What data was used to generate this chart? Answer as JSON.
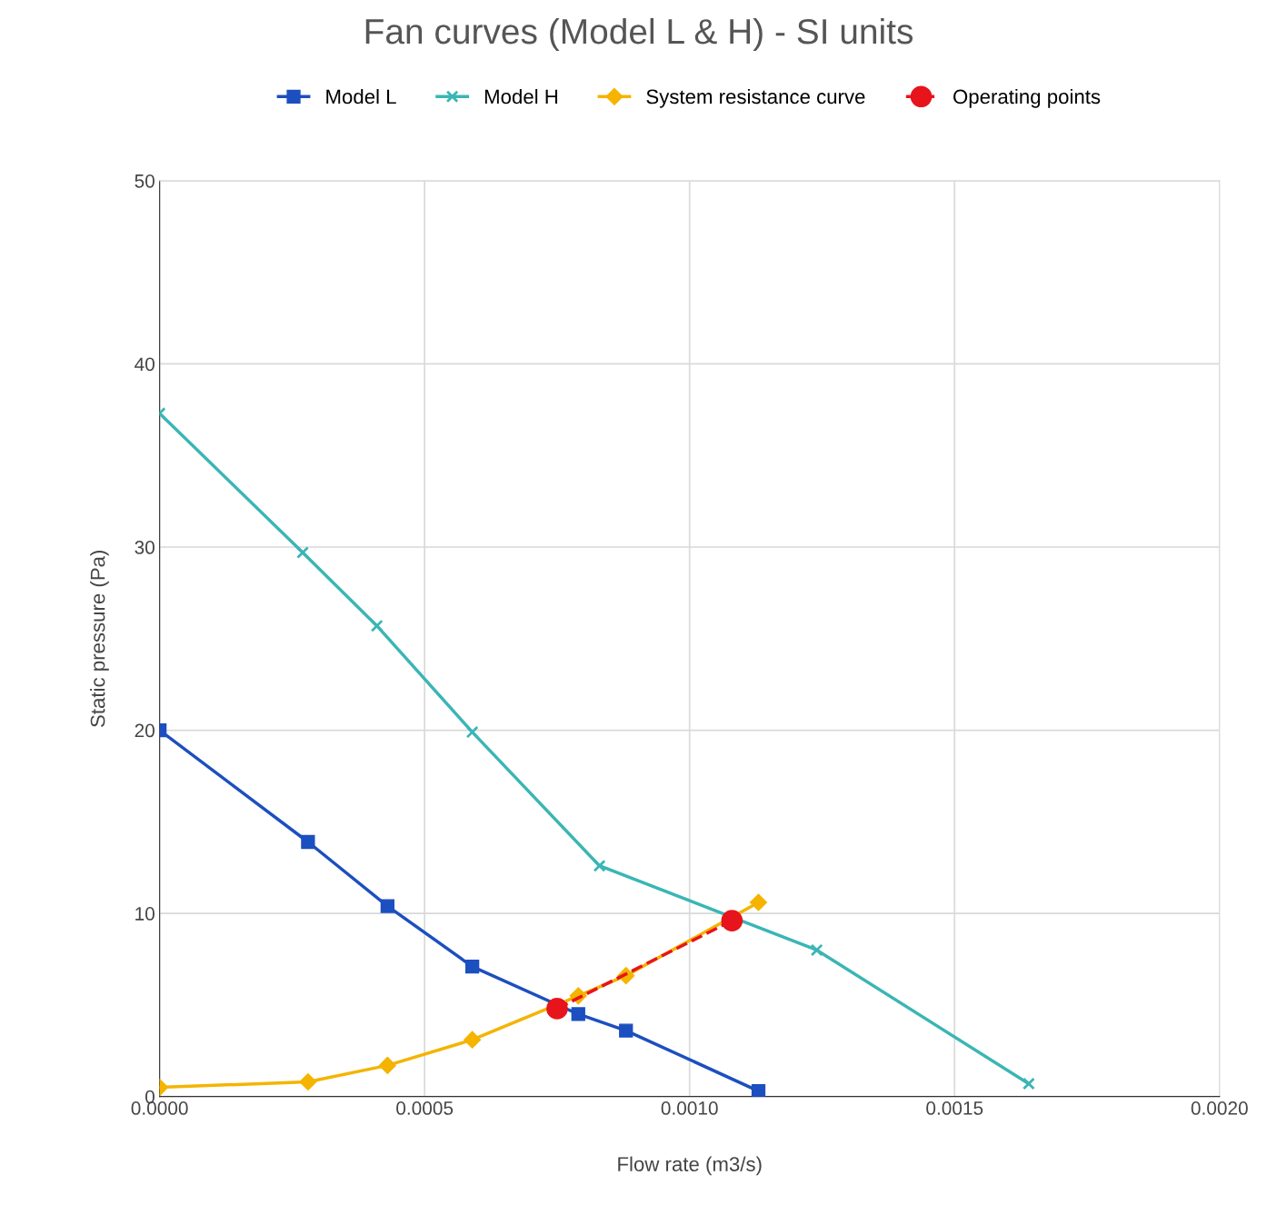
{
  "chart_data": {
    "type": "line",
    "title": "Fan curves (Model L & H) - SI units",
    "xlabel": "Flow rate (m3/s)",
    "ylabel": "Static pressure (Pa)",
    "xlim": [
      0,
      0.002
    ],
    "xticks": [
      {
        "value": 0,
        "label": "0.0000"
      },
      {
        "value": 0.0005,
        "label": "0.0005"
      },
      {
        "value": 0.001,
        "label": "0.0010"
      },
      {
        "value": 0.0015,
        "label": "0.0015"
      },
      {
        "value": 0.002,
        "label": "0.0020"
      }
    ],
    "ylim": [
      0,
      50
    ],
    "yticks": [
      0,
      10,
      20,
      30,
      40,
      50
    ],
    "grid": true,
    "legend": "top",
    "series": [
      {
        "name": "Model L",
        "color": "#1c4fbf",
        "marker": "square",
        "x": [
          0,
          0.00028,
          0.00043,
          0.00059,
          0.00079,
          0.00088,
          0.00113
        ],
        "values": [
          20.0,
          13.9,
          10.4,
          7.1,
          4.5,
          3.6,
          0.3
        ]
      },
      {
        "name": "Model H",
        "color": "#3bb5b5",
        "marker": "cross",
        "x": [
          0,
          0.00027,
          0.00041,
          0.00059,
          0.00083,
          0.00124,
          0.00164
        ],
        "values": [
          37.3,
          29.7,
          25.7,
          19.9,
          12.6,
          8.0,
          0.7
        ]
      },
      {
        "name": "System resistance curve",
        "color": "#f4b400",
        "marker": "diamond",
        "x": [
          0,
          0.00028,
          0.00043,
          0.00059,
          0.00079,
          0.00088,
          0.00113
        ],
        "values": [
          0.5,
          0.8,
          1.7,
          3.1,
          5.5,
          6.6,
          10.6
        ]
      },
      {
        "name": "Operating points",
        "color": "#e8141c",
        "marker": "circle",
        "line_style": "dashed",
        "x": [
          0.00075,
          0.00108
        ],
        "values": [
          4.8,
          9.6
        ]
      }
    ]
  }
}
